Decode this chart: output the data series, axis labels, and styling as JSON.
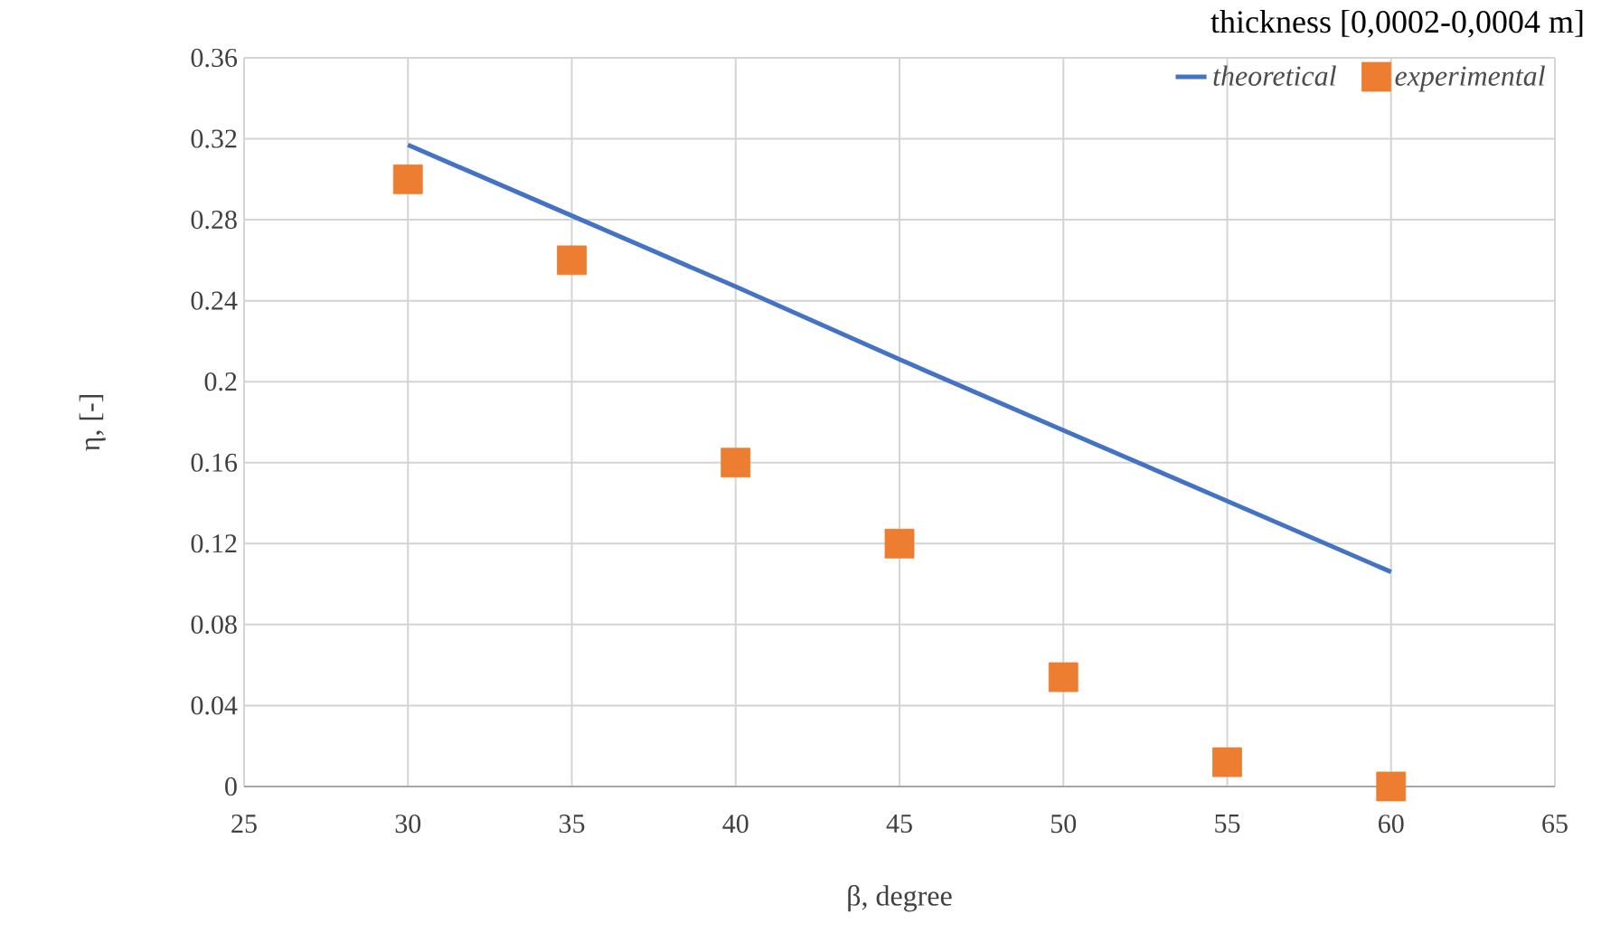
{
  "chart_data": {
    "type": "scatter",
    "title": "thickness [0,0002-0,0004 m]",
    "xlabel": "β, degree",
    "ylabel": "η, [-]",
    "x": [
      30,
      35,
      40,
      45,
      50,
      55,
      60
    ],
    "series": [
      {
        "name": "theoretical",
        "type": "line",
        "color": "#4472c4",
        "marker": "none",
        "values": [
          0.317,
          0.282,
          0.247,
          0.211,
          0.176,
          0.141,
          0.106
        ]
      },
      {
        "name": "experimental",
        "type": "scatter",
        "color": "#ed7d31",
        "marker": "square",
        "values": [
          0.3,
          0.26,
          0.16,
          0.12,
          0.054,
          0.012,
          0
        ]
      }
    ],
    "xlim": [
      25,
      65
    ],
    "xticks": [
      25,
      30,
      35,
      40,
      45,
      50,
      55,
      60,
      65
    ],
    "ylim": [
      0,
      0.36
    ],
    "yticks": [
      0,
      0.04,
      0.08,
      0.12,
      0.16,
      0.2,
      0.24,
      0.28,
      0.32,
      0.36
    ],
    "grid": true,
    "legend": "top right"
  }
}
